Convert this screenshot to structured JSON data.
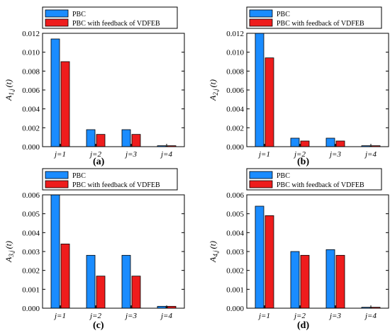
{
  "colors": {
    "pbc": "#1a8cff",
    "vdfeb": "#ee1c1c"
  },
  "legend": {
    "series1": "PBC",
    "series2": "PBC with feedback of VDFEB"
  },
  "chart_data": [
    {
      "type": "bar",
      "panel_label": "(a)",
      "ylabel": "A1,j(t)",
      "ylabel_main": "A",
      "ylabel_sub": "1,j",
      "ylabel_tail": "(t)",
      "categories": [
        "j=1",
        "j=2",
        "j=3",
        "j=4"
      ],
      "ylim": [
        0,
        0.012
      ],
      "yticks": [
        "0.000",
        "0.002",
        "0.004",
        "0.006",
        "0.008",
        "0.010",
        "0.012"
      ],
      "legend_position": "top",
      "series": [
        {
          "name": "PBC",
          "values": [
            0.0114,
            0.0018,
            0.0018,
            0.0001
          ]
        },
        {
          "name": "PBC with feedback of VDFEB",
          "values": [
            0.009,
            0.0013,
            0.0013,
            0.0001
          ]
        }
      ]
    },
    {
      "type": "bar",
      "panel_label": "(b)",
      "ylabel": "A2,j(t)",
      "ylabel_main": "A",
      "ylabel_sub": "2,j",
      "ylabel_tail": "(t)",
      "categories": [
        "j=1",
        "j=2",
        "j=3",
        "j=4"
      ],
      "ylim": [
        0,
        0.012
      ],
      "yticks": [
        "0.000",
        "0.002",
        "0.004",
        "0.006",
        "0.008",
        "0.010",
        "0.012"
      ],
      "legend_position": "top",
      "series": [
        {
          "name": "PBC",
          "values": [
            0.012,
            0.0009,
            0.0009,
            0.0001
          ]
        },
        {
          "name": "PBC with feedback of VDFEB",
          "values": [
            0.0094,
            0.0006,
            0.0006,
            0.0001
          ]
        }
      ]
    },
    {
      "type": "bar",
      "panel_label": "(c)",
      "ylabel": "A3,j(t)",
      "ylabel_main": "A",
      "ylabel_sub": "3,j",
      "ylabel_tail": "(t)",
      "categories": [
        "j=1",
        "j=2",
        "j=3",
        "j=4"
      ],
      "ylim": [
        0,
        0.006
      ],
      "yticks": [
        "0.000",
        "0.001",
        "0.002",
        "0.003",
        "0.004",
        "0.005",
        "0.006"
      ],
      "legend_position": "top",
      "series": [
        {
          "name": "PBC",
          "values": [
            0.006,
            0.0028,
            0.0028,
            0.0001
          ]
        },
        {
          "name": "PBC with feedback of VDFEB",
          "values": [
            0.0034,
            0.0017,
            0.0017,
            0.0001
          ]
        }
      ]
    },
    {
      "type": "bar",
      "panel_label": "(d)",
      "ylabel": "A4,j(t)",
      "ylabel_main": "A",
      "ylabel_sub": "4,j",
      "ylabel_tail": "(t)",
      "categories": [
        "j=1",
        "j=2",
        "j=3",
        "j=4"
      ],
      "ylim": [
        0,
        0.006
      ],
      "yticks": [
        "0.000",
        "0.001",
        "0.002",
        "0.003",
        "0.004",
        "0.005",
        "0.006"
      ],
      "legend_position": "top",
      "series": [
        {
          "name": "PBC",
          "values": [
            0.0054,
            0.003,
            0.0031,
            5e-05
          ]
        },
        {
          "name": "PBC with feedback of VDFEB",
          "values": [
            0.0049,
            0.0028,
            0.0028,
            5e-05
          ]
        }
      ]
    }
  ]
}
